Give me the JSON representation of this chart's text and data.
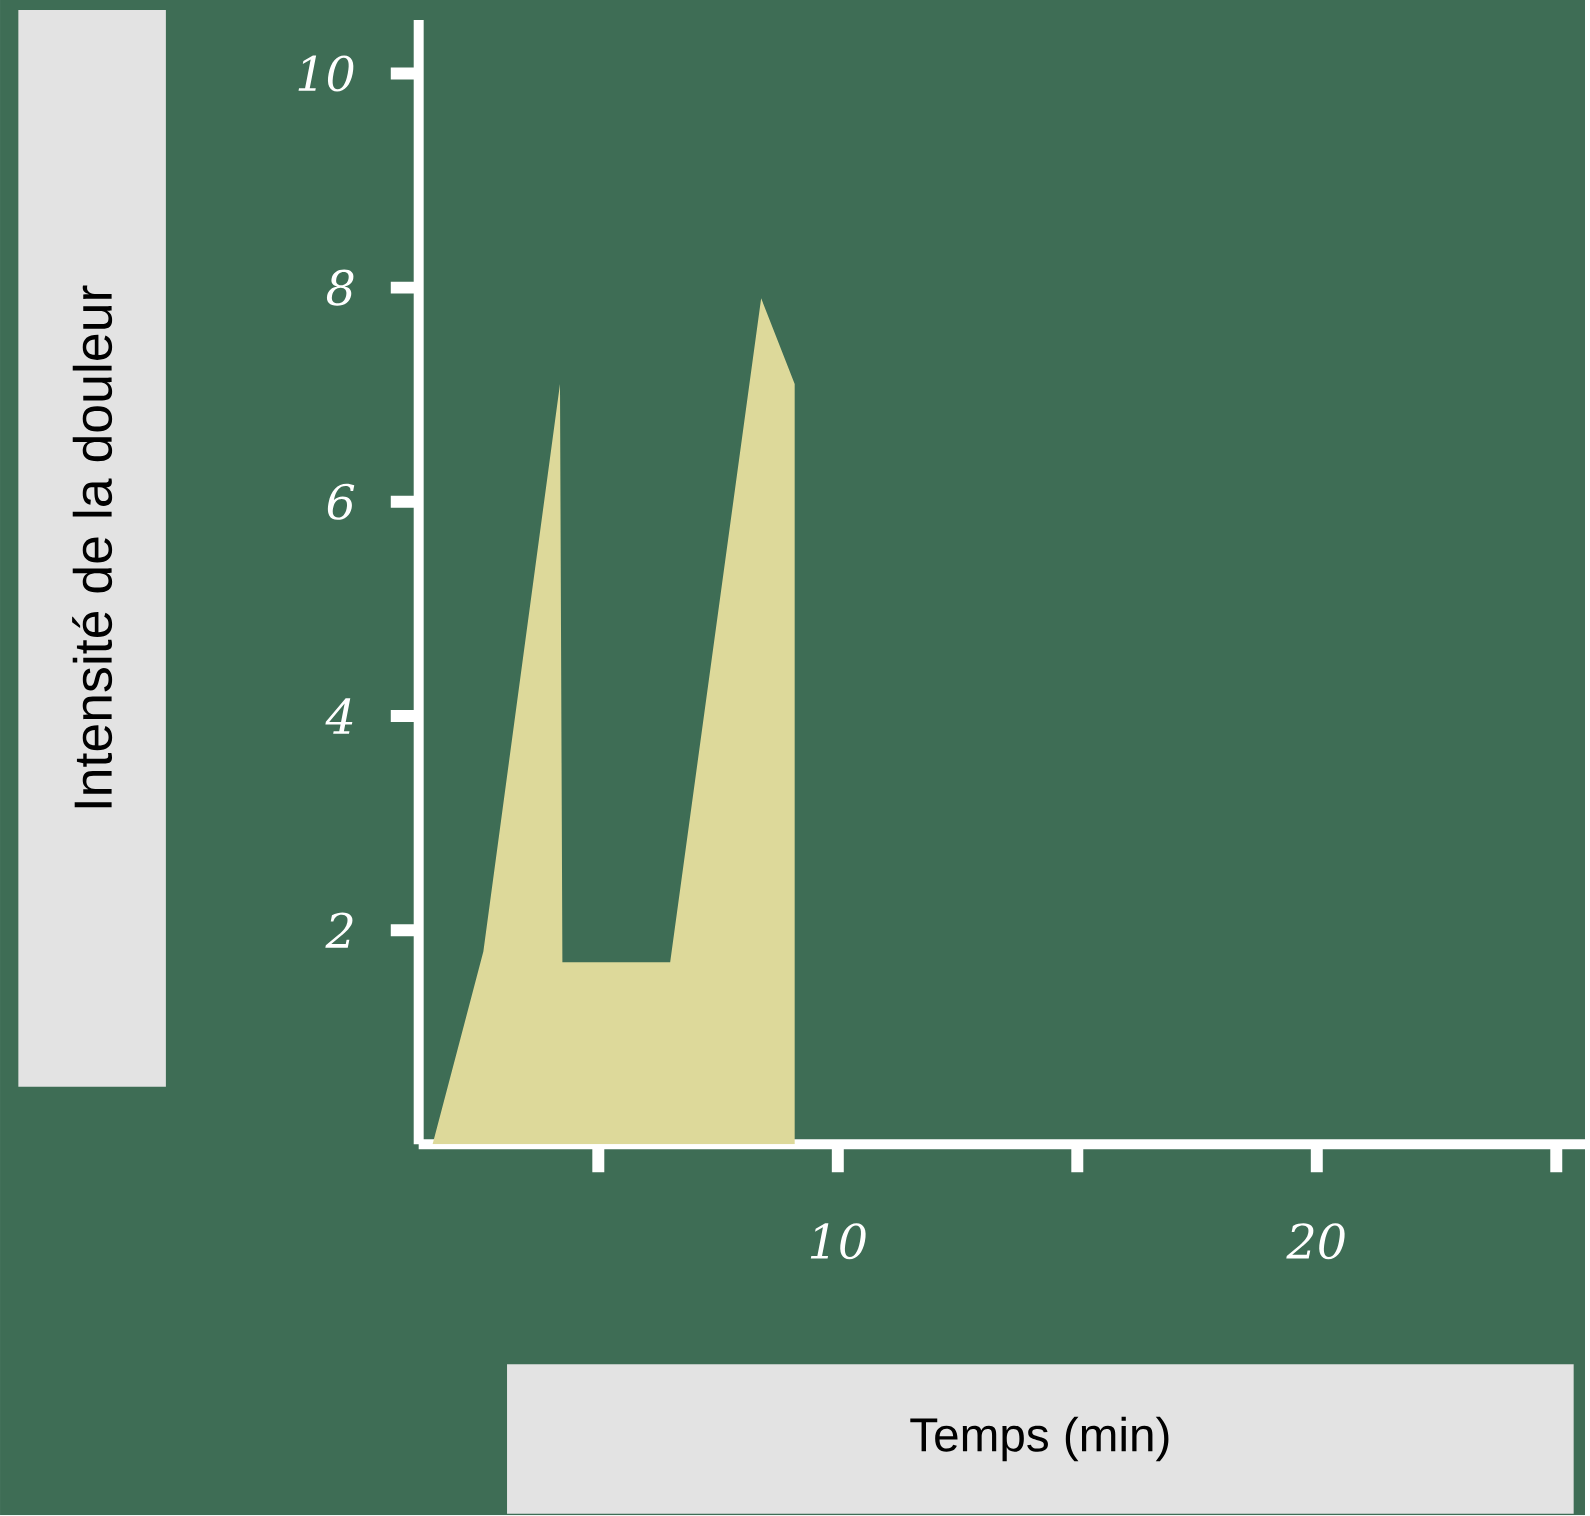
{
  "chart_data": {
    "type": "area",
    "xlabel": "Temps (min)",
    "ylabel": "Intensité de la douleur",
    "x": [
      1.54,
      2.6,
      4.2,
      4.25,
      6.5,
      8.4,
      9.1,
      9.1
    ],
    "values": [
      0,
      1.8,
      7.1,
      1.7,
      1.7,
      7.9,
      7.1,
      0
    ],
    "color": "#ddd99a",
    "xlim": [
      1.25,
      25.6
    ],
    "ylim": [
      0,
      10.5
    ],
    "xticks": [
      {
        "value": 5,
        "label": null
      },
      10,
      {
        "value": 15,
        "label": null
      },
      20,
      {
        "value": 25,
        "label": null
      }
    ],
    "yticks": [
      2,
      4,
      6,
      8,
      10
    ]
  }
}
